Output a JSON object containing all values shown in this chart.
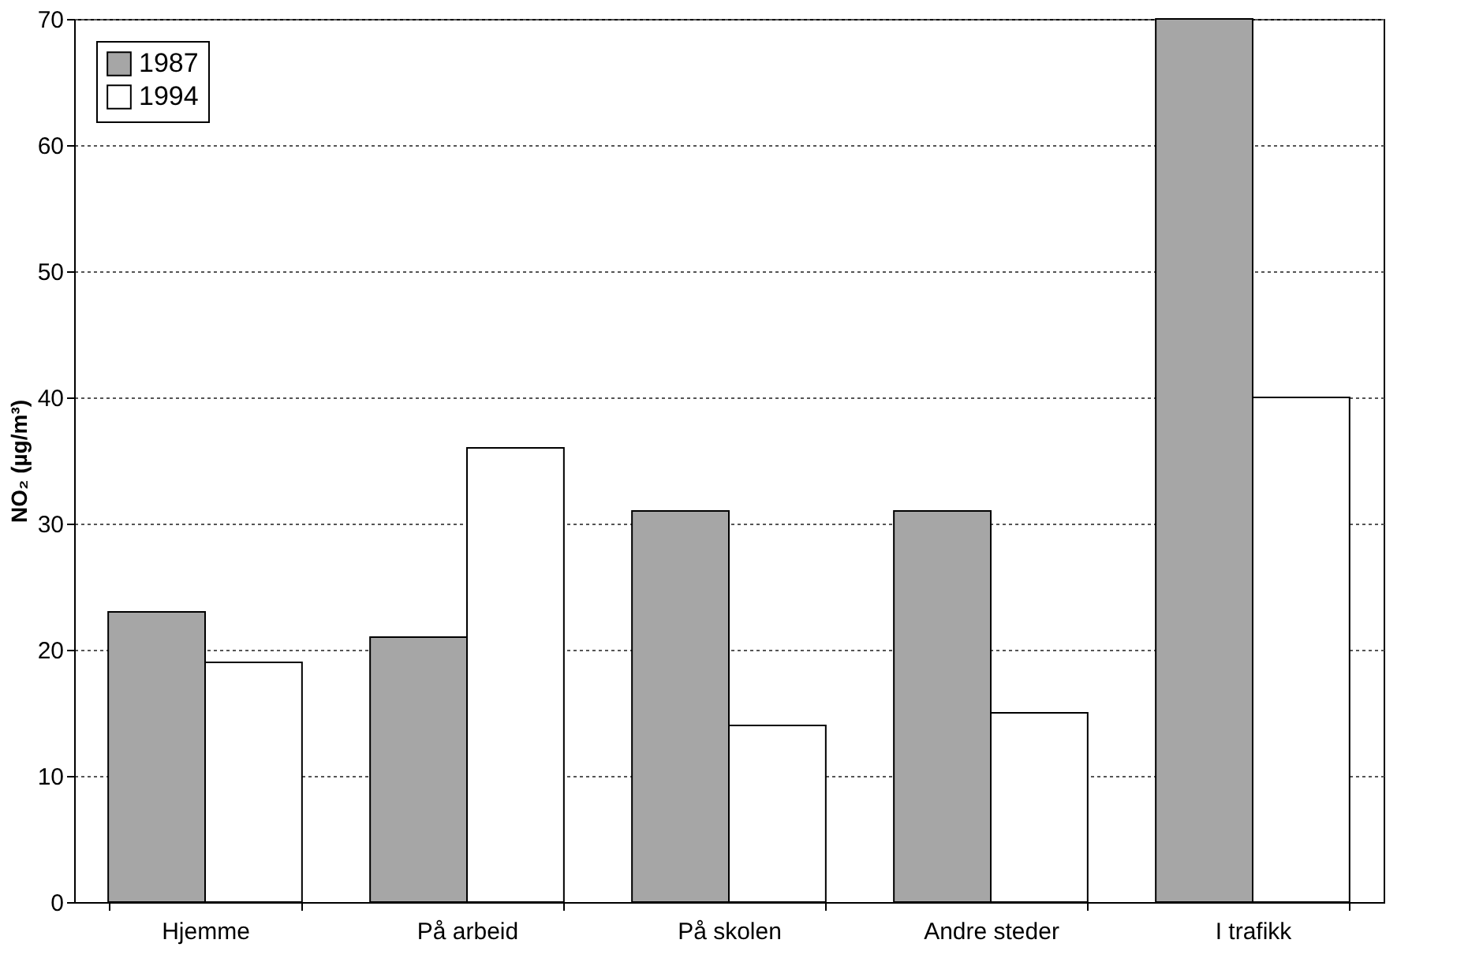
{
  "chart_data": {
    "type": "bar",
    "ylabel": "NO₂ (µg/m³)",
    "categories": [
      "Hjemme",
      "På arbeid",
      "På skolen",
      "Andre steder",
      "I trafikk"
    ],
    "series": [
      {
        "name": "1987",
        "color": "#a6a6a6",
        "values": [
          23,
          21,
          31,
          31,
          70
        ]
      },
      {
        "name": "1994",
        "color": "#ffffff",
        "values": [
          19,
          36,
          14,
          15,
          40
        ]
      }
    ],
    "ylim": [
      0,
      70
    ],
    "yticks": [
      0,
      10,
      20,
      30,
      40,
      50,
      60,
      70
    ],
    "grid": "y",
    "legend": "top left"
  }
}
